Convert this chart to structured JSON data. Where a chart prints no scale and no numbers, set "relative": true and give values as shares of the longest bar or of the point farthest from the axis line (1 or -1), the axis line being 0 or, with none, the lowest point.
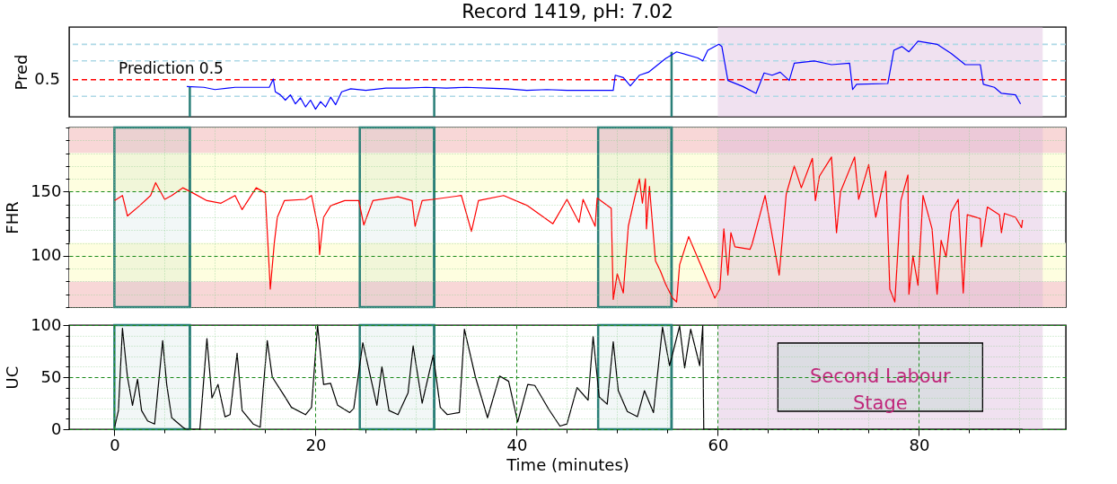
{
  "chart_data": [
    {
      "type": "line",
      "title": "Record 1419, pH: 7.02",
      "ylabel": "Pred",
      "relative": true,
      "xlim": [
        -4.5,
        94.6
      ],
      "tick_labels": "y",
      "x": [
        7.2,
        8.9,
        10.0,
        12.0,
        14.0,
        15.4,
        15.8,
        16.0,
        16.5,
        17.0,
        17.5,
        18.0,
        18.5,
        19.0,
        19.5,
        20.0,
        20.5,
        21.0,
        21.5,
        22.0,
        22.6,
        23.5,
        25,
        27,
        29,
        31,
        33,
        35,
        37,
        39,
        41,
        43,
        45,
        47,
        49.6,
        49.8,
        50.6,
        51.3,
        52.2,
        53.1,
        54.8,
        55.9,
        58.0,
        58.5,
        59.0,
        60.1,
        60.4,
        61.0,
        62.5,
        63.8,
        64.6,
        65.4,
        66.2,
        67.1,
        67.6,
        69.6,
        71.3,
        73.1,
        73.4,
        73.8,
        76.9,
        77.5,
        78.3,
        79.0,
        79.9,
        81.8,
        83.2,
        84.6,
        86.1,
        86.4,
        87.5,
        88.2,
        89.6,
        90.1
      ],
      "series": [
        {
          "color": "#0000ff",
          "values": [
            0.4,
            0.39,
            0.36,
            0.39,
            0.39,
            0.39,
            0.5,
            0.33,
            0.29,
            0.22,
            0.29,
            0.17,
            0.25,
            0.13,
            0.22,
            0.1,
            0.2,
            0.13,
            0.26,
            0.16,
            0.33,
            0.37,
            0.35,
            0.38,
            0.38,
            0.39,
            0.38,
            0.39,
            0.38,
            0.37,
            0.35,
            0.36,
            0.35,
            0.35,
            0.35,
            0.55,
            0.52,
            0.41,
            0.55,
            0.59,
            0.77,
            0.86,
            0.78,
            0.74,
            0.88,
            0.96,
            0.93,
            0.48,
            0.4,
            0.31,
            0.58,
            0.55,
            0.59,
            0.48,
            0.71,
            0.74,
            0.69,
            0.71,
            0.36,
            0.43,
            0.44,
            0.88,
            0.93,
            0.86,
            1.0,
            0.96,
            0.84,
            0.69,
            0.69,
            0.43,
            0.39,
            0.31,
            0.29,
            0.17
          ]
        }
      ],
      "ref_lines": [
        {
          "axis": "y",
          "value": 0.96,
          "color": "#add8e6",
          "line_style": "dashed"
        },
        {
          "axis": "y",
          "value": 0.74,
          "color": "#add8e6",
          "line_style": "dashed"
        },
        {
          "axis": "y",
          "value": 0.27,
          "color": "#add8e6",
          "line_style": "dashed"
        },
        {
          "axis": "y",
          "value": 0.49,
          "label": "Prediction 0.5",
          "color": "#ff0000",
          "line_style": "dashed"
        },
        {
          "axis": "x",
          "value": 7.5,
          "color": "#2a7f78"
        },
        {
          "axis": "x",
          "value": 31.8,
          "color": "#2a7f78"
        },
        {
          "axis": "x",
          "value": 55.4,
          "color": "#2a7f78"
        }
      ],
      "bands": [
        {
          "axis": "x",
          "from": 60,
          "to": 92.3,
          "color": "#d9b3d9"
        }
      ],
      "annotations": [
        "0.5"
      ]
    },
    {
      "type": "line",
      "ylabel": "FHR",
      "xlim": [
        -4.5,
        94.6
      ],
      "ylim": [
        60,
        200
      ],
      "tick_labels": "y",
      "grid": true,
      "xticks": [
        {
          "value": 0,
          "label": null
        },
        {
          "value": 5,
          "label": null
        },
        {
          "value": 10,
          "label": null
        },
        {
          "value": 15,
          "label": null
        },
        {
          "value": 20,
          "label": null
        },
        {
          "value": 25,
          "label": null
        },
        {
          "value": 30,
          "label": null
        },
        {
          "value": 35,
          "label": null
        },
        {
          "value": 40,
          "label": null
        },
        {
          "value": 45,
          "label": null
        },
        {
          "value": 50,
          "label": null
        },
        {
          "value": 55,
          "label": null
        },
        {
          "value": 60,
          "label": null
        },
        {
          "value": 65,
          "label": null
        },
        {
          "value": 70,
          "label": null
        },
        {
          "value": 75,
          "label": null
        },
        {
          "value": 80,
          "label": null
        },
        {
          "value": 85,
          "label": null
        },
        {
          "value": 90,
          "label": null
        }
      ],
      "yticks": [
        {
          "value": 60,
          "label": null
        },
        {
          "value": 70,
          "label": null
        },
        {
          "value": 80,
          "label": null
        },
        {
          "value": 90,
          "label": null
        },
        100,
        {
          "value": 110,
          "label": null
        },
        {
          "value": 120,
          "label": null
        },
        {
          "value": 130,
          "label": null
        },
        {
          "value": 140,
          "label": null
        },
        150,
        {
          "value": 160,
          "label": null
        },
        {
          "value": 170,
          "label": null
        },
        {
          "value": 180,
          "label": null
        },
        {
          "value": 190,
          "label": null
        },
        {
          "value": 200,
          "label": null
        }
      ],
      "x": [
        0.0,
        0.8,
        1.3,
        2.5,
        3.6,
        4.1,
        5.0,
        5.7,
        6.8,
        7.8,
        9.2,
        10.6,
        12.0,
        12.7,
        14.1,
        15.0,
        15.5,
        15.9,
        16.2,
        16.9,
        19.0,
        19.6,
        20.3,
        20.4,
        20.8,
        21.5,
        22.9,
        24.3,
        24.8,
        25.7,
        28.2,
        29.6,
        29.9,
        30.6,
        31.7,
        34.5,
        35.5,
        36.2,
        38.7,
        41.1,
        43.6,
        45.0,
        46.2,
        46.6,
        47.8,
        48.0,
        49.4,
        49.6,
        50.0,
        50.6,
        51.1,
        51.7,
        52.2,
        52.5,
        52.8,
        52.9,
        53.2,
        53.8,
        54.3,
        54.8,
        55.5,
        55.9,
        56.2,
        57.1,
        59.7,
        60.2,
        60.6,
        61.0,
        61.3,
        61.7,
        63.2,
        63.4,
        64.7,
        66.1,
        66.8,
        67.6,
        68.3,
        69.4,
        69.7,
        70.1,
        71.3,
        71.8,
        72.2,
        73.6,
        74.0,
        75.0,
        75.7,
        76.7,
        77.1,
        77.6,
        78.2,
        78.9,
        79.0,
        79.4,
        79.9,
        80.4,
        81.3,
        81.8,
        82.2,
        82.7,
        83.2,
        83.9,
        84.4,
        84.8,
        86.1,
        86.2,
        86.8,
        88.0,
        88.2,
        88.5,
        89.6,
        90.2,
        90.3
      ],
      "series": [
        {
          "color": "#ff0000",
          "values": [
            143,
            147,
            131,
            139,
            147,
            157,
            144,
            147,
            153,
            149,
            143,
            141,
            147,
            136,
            153,
            149,
            74,
            110,
            130,
            143,
            144,
            147,
            120,
            101,
            130,
            139,
            143,
            143,
            124,
            143,
            146,
            143,
            123,
            143,
            144,
            147,
            119,
            143,
            147,
            139,
            125,
            144,
            126,
            144,
            123,
            145,
            137,
            66,
            86,
            71,
            123,
            144,
            160,
            141,
            160,
            121,
            154,
            96,
            88,
            78,
            67,
            64,
            93,
            115,
            67,
            74,
            121,
            85,
            118,
            107,
            105,
            109,
            147,
            85,
            148,
            170,
            153,
            176,
            143,
            162,
            177,
            118,
            150,
            177,
            144,
            171,
            130,
            166,
            74,
            64,
            143,
            163,
            70,
            100,
            77,
            147,
            121,
            70,
            112,
            99,
            134,
            144,
            71,
            132,
            129,
            107,
            138,
            132,
            118,
            133,
            130,
            122,
            128
          ]
        }
      ],
      "bands": [
        {
          "axis": "y",
          "from": 180,
          "to": 200,
          "color": "#f8d7d7"
        },
        {
          "axis": "y",
          "from": 150,
          "to": 180,
          "color": "#fefee0"
        },
        {
          "axis": "y",
          "from": 80,
          "to": 110,
          "color": "#fefee0"
        },
        {
          "axis": "y",
          "from": 60,
          "to": 80,
          "color": "#f8d7d7"
        },
        {
          "axis": "x",
          "from": 60,
          "to": 92.3,
          "color": "#d9b3d9"
        },
        {
          "axis": "x",
          "from": 0,
          "to": 7.5,
          "color": "#2a7f78"
        },
        {
          "axis": "x",
          "from": 24.4,
          "to": 31.8,
          "color": "#2a7f78"
        },
        {
          "axis": "x",
          "from": 48.1,
          "to": 55.4,
          "color": "#2a7f78"
        }
      ],
      "ref_lines": [
        {
          "axis": "x",
          "value": 7.5,
          "color": "#2a7f78"
        },
        {
          "axis": "x",
          "value": 31.8,
          "color": "#2a7f78"
        },
        {
          "axis": "x",
          "value": 55.4,
          "color": "#2a7f78"
        }
      ]
    },
    {
      "type": "line",
      "ylabel": "UC",
      "xlabel": "Time (minutes)",
      "xlim": [
        -4.5,
        94.6
      ],
      "ylim": [
        0,
        100
      ],
      "grid": true,
      "xticks": [
        0,
        {
          "value": 5,
          "label": null
        },
        {
          "value": 10,
          "label": null
        },
        {
          "value": 15,
          "label": null
        },
        20,
        {
          "value": 25,
          "label": null
        },
        {
          "value": 30,
          "label": null
        },
        {
          "value": 35,
          "label": null
        },
        40,
        {
          "value": 45,
          "label": null
        },
        {
          "value": 50,
          "label": null
        },
        {
          "value": 55,
          "label": null
        },
        60,
        {
          "value": 65,
          "label": null
        },
        {
          "value": 70,
          "label": null
        },
        {
          "value": 75,
          "label": null
        },
        80,
        {
          "value": 85,
          "label": null
        },
        {
          "value": 90,
          "label": null
        }
      ],
      "yticks": [
        0,
        {
          "value": 10,
          "label": null
        },
        {
          "value": 20,
          "label": null
        },
        {
          "value": 30,
          "label": null
        },
        {
          "value": 40,
          "label": null
        },
        50,
        {
          "value": 60,
          "label": null
        },
        {
          "value": 70,
          "label": null
        },
        {
          "value": 80,
          "label": null
        },
        {
          "value": 90,
          "label": null
        },
        100
      ],
      "x": [
        0.0,
        0.4,
        0.8,
        1.3,
        1.8,
        2.3,
        2.7,
        3.3,
        4.0,
        4.3,
        4.8,
        5.2,
        5.7,
        6.8,
        7.1,
        8.5,
        9.2,
        9.7,
        10.3,
        11.0,
        11.5,
        12.2,
        12.7,
        13.8,
        14.5,
        14.8,
        15.2,
        15.7,
        16.9,
        17.6,
        19.0,
        19.6,
        20.2,
        20.8,
        21.5,
        22.2,
        23.4,
        23.8,
        24.7,
        26.1,
        26.6,
        27.3,
        28.2,
        29.2,
        29.7,
        30.6,
        31.7,
        32.4,
        33.1,
        34.3,
        34.8,
        35.9,
        37.1,
        38.3,
        39.2,
        40.1,
        41.1,
        41.8,
        43.2,
        44.3,
        45.0,
        46.0,
        47.1,
        47.6,
        48.2,
        49.0,
        49.6,
        50.1,
        51.0,
        52.0,
        52.7,
        53.6,
        54.5,
        55.2,
        56.2,
        56.7,
        57.3,
        58.2,
        58.5,
        58.6,
        61.5,
        90.3
      ],
      "series": [
        {
          "color": "#000000",
          "values": [
            1,
            18,
            97,
            50,
            23,
            48,
            18,
            8,
            5,
            35,
            85,
            43,
            11,
            2,
            0,
            0,
            87,
            30,
            43,
            12,
            14,
            73,
            18,
            5,
            2,
            39,
            85,
            50,
            32,
            21,
            14,
            21,
            100,
            43,
            44,
            23,
            16,
            20,
            83,
            23,
            60,
            18,
            14,
            35,
            80,
            25,
            71,
            21,
            14,
            16,
            96,
            50,
            11,
            51,
            46,
            7,
            43,
            42,
            19,
            3,
            5,
            40,
            28,
            89,
            31,
            24,
            84,
            37,
            17,
            12,
            37,
            16,
            98,
            61,
            99,
            59,
            96,
            61,
            99,
            0,
            0,
            0
          ]
        }
      ],
      "bands": [
        {
          "axis": "x",
          "from": 60,
          "to": 92.3,
          "color": "#d9b3d9",
          "label": "Second Labour Stage"
        },
        {
          "axis": "x",
          "from": 0,
          "to": 7.5,
          "color": "#2a7f78"
        },
        {
          "axis": "x",
          "from": 24.4,
          "to": 31.8,
          "color": "#2a7f78"
        },
        {
          "axis": "x",
          "from": 48.1,
          "to": 55.4,
          "color": "#2a7f78"
        }
      ],
      "ref_lines": [
        {
          "axis": "x",
          "value": 7.5,
          "color": "#2a7f78"
        },
        {
          "axis": "x",
          "value": 31.8,
          "color": "#2a7f78"
        },
        {
          "axis": "x",
          "value": 55.4,
          "color": "#2a7f78"
        }
      ]
    }
  ]
}
